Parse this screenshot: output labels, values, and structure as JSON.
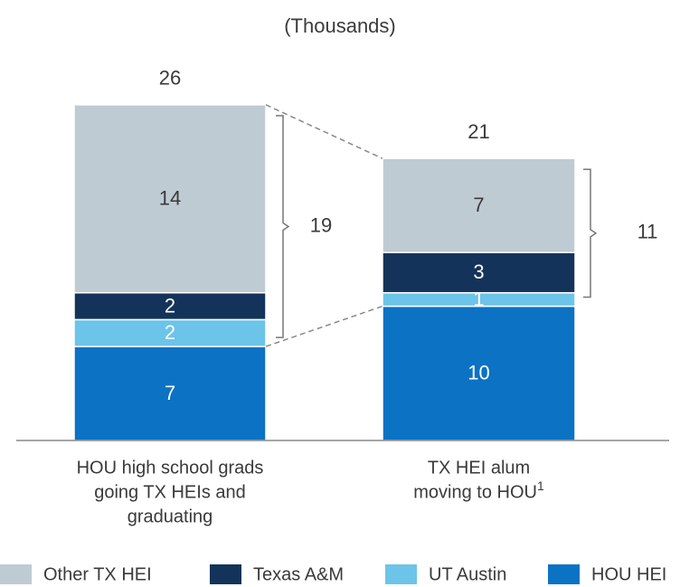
{
  "chart_data": {
    "type": "stacked_bar",
    "subtitle": "(Thousands)",
    "categories": [
      [
        "HOU high school grads",
        "going TX HEIs and",
        "graduating"
      ],
      [
        "TX HEI alum",
        "moving to HOU"
      ]
    ],
    "footnotes": [
      null,
      "1"
    ],
    "series": [
      {
        "name": "HOU HEI",
        "color": "#0b72c4",
        "label_color": "#ffffff",
        "values": [
          7,
          10
        ]
      },
      {
        "name": "UT Austin",
        "color": "#6cc4e8",
        "label_color": "#ffffff",
        "values": [
          2,
          1
        ]
      },
      {
        "name": "Texas A&M",
        "color": "#14335a",
        "label_color": "#ffffff",
        "values": [
          2,
          3
        ]
      },
      {
        "name": "Other TX HEI",
        "color": "#bfcbd3",
        "label_color": "#3a3a3a",
        "values": [
          14,
          7
        ]
      }
    ],
    "totals": [
      26,
      21
    ],
    "bracket_values": [
      19,
      11
    ],
    "ylim": [
      0,
      26
    ]
  }
}
